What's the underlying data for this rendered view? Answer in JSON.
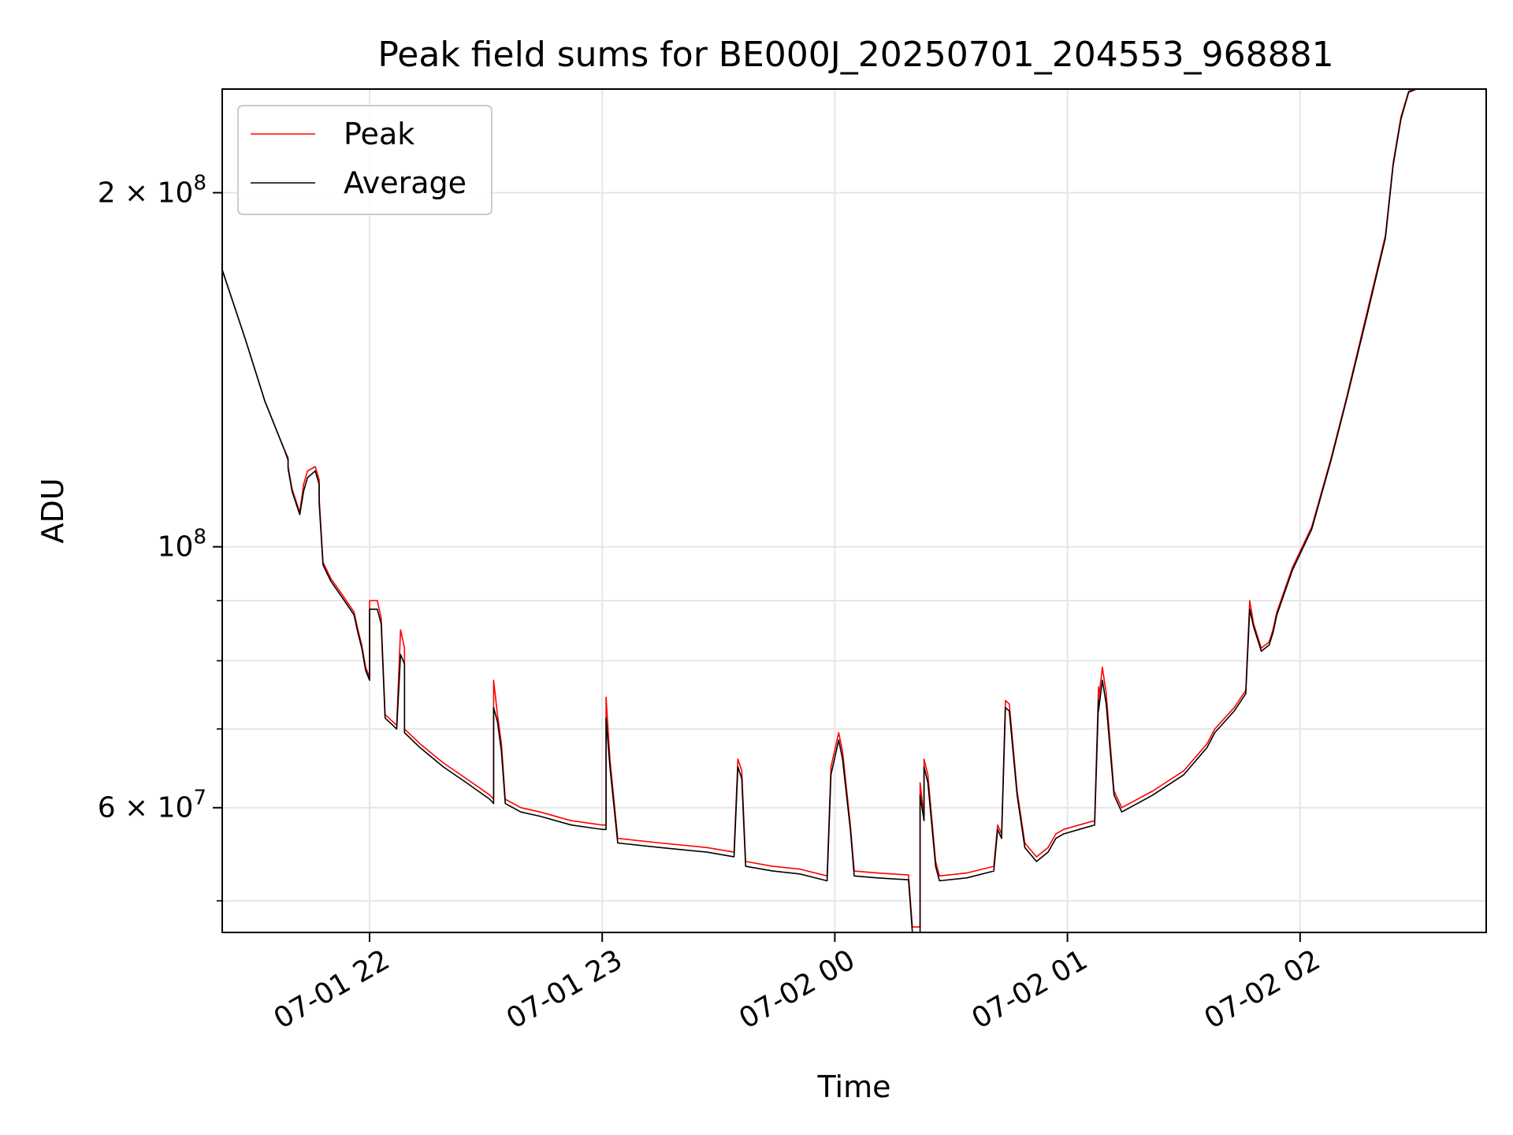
{
  "chart_data": {
    "type": "line",
    "title": "Peak field sums for BE000J_20250701_204553_968881",
    "xlabel": "Time",
    "ylabel": "ADU",
    "y_scale": "log",
    "ylim": [
      47000000,
      245000000
    ],
    "xlim": [
      "2025-07-01 21:22",
      "2025-07-02 02:48"
    ],
    "grid": true,
    "legend_position": "top-left",
    "x_ticks": [
      {
        "value": "2025-07-01 22:00",
        "label": "07-01 22"
      },
      {
        "value": "2025-07-01 23:00",
        "label": "07-01 23"
      },
      {
        "value": "2025-07-02 00:00",
        "label": "07-02 00"
      },
      {
        "value": "2025-07-02 01:00",
        "label": "07-02 01"
      },
      {
        "value": "2025-07-02 02:00",
        "label": "07-02 02"
      }
    ],
    "y_ticks": [
      {
        "value": 60000000,
        "label": "6×10^7",
        "mantissa": "6",
        "exponent": "7"
      },
      {
        "value": 100000000,
        "label": "10^8",
        "mantissa": "",
        "exponent": "8"
      },
      {
        "value": 200000000,
        "label": "2×10^8",
        "mantissa": "2",
        "exponent": "8"
      }
    ],
    "y_minor_ticks": [
      50000000,
      70000000,
      80000000,
      90000000
    ],
    "colors": {
      "Peak": "#ff0000",
      "Average": "#000000",
      "grid": "#e6e6e6"
    },
    "series": [
      {
        "name": "Peak",
        "points": [
          [
            "2025-07-01 21:22",
            172000000
          ],
          [
            "2025-07-01 21:28",
            150000000
          ],
          [
            "2025-07-01 21:33",
            133000000
          ],
          [
            "2025-07-01 21:38",
            121000000
          ],
          [
            "2025-07-01 21:39",
            119000000
          ],
          [
            "2025-07-01 21:39",
            117000000
          ],
          [
            "2025-07-01 21:40",
            112000000
          ],
          [
            "2025-07-01 21:42",
            107000000
          ],
          [
            "2025-07-01 21:43",
            113000000
          ],
          [
            "2025-07-01 21:44",
            116000000
          ],
          [
            "2025-07-01 21:46",
            117000000
          ],
          [
            "2025-07-01 21:47",
            114000000
          ],
          [
            "2025-07-01 21:47",
            110000000
          ],
          [
            "2025-07-01 21:48",
            97000000
          ],
          [
            "2025-07-01 21:50",
            94000000
          ],
          [
            "2025-07-01 21:53",
            91000000
          ],
          [
            "2025-07-01 21:56",
            88000000
          ],
          [
            "2025-07-01 21:57",
            85000000
          ],
          [
            "2025-07-01 21:58",
            82500000
          ],
          [
            "2025-07-01 21:59",
            79000000
          ],
          [
            "2025-07-01 22:00",
            77500000
          ],
          [
            "2025-07-01 22:00",
            90000000
          ],
          [
            "2025-07-01 22:02",
            90000000
          ],
          [
            "2025-07-01 22:03",
            87000000
          ],
          [
            "2025-07-01 22:04",
            72000000
          ],
          [
            "2025-07-01 22:06",
            71000000
          ],
          [
            "2025-07-01 22:07",
            70500000
          ],
          [
            "2025-07-01 22:08",
            85000000
          ],
          [
            "2025-07-01 22:09",
            82000000
          ],
          [
            "2025-07-01 22:09",
            70000000
          ],
          [
            "2025-07-01 22:13",
            68000000
          ],
          [
            "2025-07-01 22:19",
            65500000
          ],
          [
            "2025-07-01 22:25",
            63500000
          ],
          [
            "2025-07-01 22:31",
            61500000
          ],
          [
            "2025-07-01 22:32",
            61000000
          ],
          [
            "2025-07-01 22:32",
            77000000
          ],
          [
            "2025-07-01 22:33",
            72000000
          ],
          [
            "2025-07-01 22:34",
            68000000
          ],
          [
            "2025-07-01 22:35",
            61000000
          ],
          [
            "2025-07-01 22:39",
            60000000
          ],
          [
            "2025-07-01 22:44",
            59500000
          ],
          [
            "2025-07-01 22:52",
            58500000
          ],
          [
            "2025-07-01 23:00",
            58000000
          ],
          [
            "2025-07-01 23:01",
            58000000
          ],
          [
            "2025-07-01 23:01",
            74500000
          ],
          [
            "2025-07-01 23:02",
            66000000
          ],
          [
            "2025-07-01 23:04",
            56500000
          ],
          [
            "2025-07-01 23:15",
            56000000
          ],
          [
            "2025-07-01 23:27",
            55500000
          ],
          [
            "2025-07-01 23:34",
            55000000
          ],
          [
            "2025-07-01 23:35",
            66000000
          ],
          [
            "2025-07-01 23:36",
            64500000
          ],
          [
            "2025-07-01 23:37",
            54000000
          ],
          [
            "2025-07-01 23:44",
            53500000
          ],
          [
            "2025-07-01 23:51",
            53200000
          ],
          [
            "2025-07-01 23:58",
            52500000
          ],
          [
            "2025-07-01 23:59",
            65000000
          ],
          [
            "2025-07-02 00:01",
            69500000
          ],
          [
            "2025-07-02 00:02",
            67000000
          ],
          [
            "2025-07-02 00:04",
            58000000
          ],
          [
            "2025-07-02 00:05",
            53000000
          ],
          [
            "2025-07-02 00:11",
            52800000
          ],
          [
            "2025-07-02 00:19",
            52600000
          ],
          [
            "2025-07-02 00:20",
            47500000
          ],
          [
            "2025-07-02 00:22",
            47500000
          ],
          [
            "2025-07-02 00:22",
            63000000
          ],
          [
            "2025-07-02 00:23",
            59000000
          ],
          [
            "2025-07-02 00:23",
            66000000
          ],
          [
            "2025-07-02 00:24",
            64000000
          ],
          [
            "2025-07-02 00:26",
            54000000
          ],
          [
            "2025-07-02 00:27",
            52500000
          ],
          [
            "2025-07-02 00:34",
            52800000
          ],
          [
            "2025-07-02 00:41",
            53500000
          ],
          [
            "2025-07-02 00:42",
            58000000
          ],
          [
            "2025-07-02 00:43",
            57000000
          ],
          [
            "2025-07-02 00:44",
            74000000
          ],
          [
            "2025-07-02 00:45",
            73500000
          ],
          [
            "2025-07-02 00:47",
            62000000
          ],
          [
            "2025-07-02 00:49",
            56000000
          ],
          [
            "2025-07-02 00:52",
            54500000
          ],
          [
            "2025-07-02 00:55",
            55500000
          ],
          [
            "2025-07-02 00:57",
            57000000
          ],
          [
            "2025-07-02 00:59",
            57500000
          ],
          [
            "2025-07-02 01:03",
            58000000
          ],
          [
            "2025-07-02 01:07",
            58500000
          ],
          [
            "2025-07-02 01:08",
            76000000
          ],
          [
            "2025-07-02 01:08",
            74000000
          ],
          [
            "2025-07-02 01:09",
            79000000
          ],
          [
            "2025-07-02 01:10",
            75000000
          ],
          [
            "2025-07-02 01:12",
            62000000
          ],
          [
            "2025-07-02 01:14",
            60000000
          ],
          [
            "2025-07-02 01:22",
            62000000
          ],
          [
            "2025-07-02 01:30",
            64500000
          ],
          [
            "2025-07-02 01:36",
            68000000
          ],
          [
            "2025-07-02 01:38",
            70000000
          ],
          [
            "2025-07-02 01:43",
            73000000
          ],
          [
            "2025-07-02 01:46",
            75500000
          ],
          [
            "2025-07-02 01:47",
            90000000
          ],
          [
            "2025-07-02 01:48",
            86000000
          ],
          [
            "2025-07-02 01:49",
            84000000
          ],
          [
            "2025-07-02 01:50",
            82000000
          ],
          [
            "2025-07-02 01:52",
            83000000
          ],
          [
            "2025-07-02 01:53",
            85000000
          ],
          [
            "2025-07-02 01:54",
            88000000
          ],
          [
            "2025-07-02 01:58",
            96000000
          ],
          [
            "2025-07-02 02:03",
            104000000
          ],
          [
            "2025-07-02 02:08",
            119000000
          ],
          [
            "2025-07-02 02:12",
            134000000
          ],
          [
            "2025-07-02 02:17",
            157000000
          ],
          [
            "2025-07-02 02:22",
            184000000
          ],
          [
            "2025-07-02 02:24",
            212000000
          ],
          [
            "2025-07-02 02:26",
            232000000
          ],
          [
            "2025-07-02 02:28",
            244000000
          ],
          [
            "2025-07-02 02:30",
            245000000
          ]
        ]
      },
      {
        "name": "Average",
        "points": [
          [
            "2025-07-01 21:22",
            172000000
          ],
          [
            "2025-07-01 21:28",
            150000000
          ],
          [
            "2025-07-01 21:33",
            133000000
          ],
          [
            "2025-07-01 21:38",
            121000000
          ],
          [
            "2025-07-01 21:39",
            118500000
          ],
          [
            "2025-07-01 21:39",
            116500000
          ],
          [
            "2025-07-01 21:40",
            111500000
          ],
          [
            "2025-07-01 21:42",
            106500000
          ],
          [
            "2025-07-01 21:43",
            111500000
          ],
          [
            "2025-07-01 21:44",
            114500000
          ],
          [
            "2025-07-01 21:46",
            116000000
          ],
          [
            "2025-07-01 21:47",
            113000000
          ],
          [
            "2025-07-01 21:47",
            109000000
          ],
          [
            "2025-07-01 21:48",
            96500000
          ],
          [
            "2025-07-01 21:50",
            93500000
          ],
          [
            "2025-07-01 21:53",
            90500000
          ],
          [
            "2025-07-01 21:56",
            87500000
          ],
          [
            "2025-07-01 21:57",
            84500000
          ],
          [
            "2025-07-01 21:58",
            82000000
          ],
          [
            "2025-07-01 21:59",
            78500000
          ],
          [
            "2025-07-01 22:00",
            77000000
          ],
          [
            "2025-07-01 22:00",
            88500000
          ],
          [
            "2025-07-01 22:02",
            88500000
          ],
          [
            "2025-07-01 22:03",
            86000000
          ],
          [
            "2025-07-01 22:04",
            71500000
          ],
          [
            "2025-07-01 22:06",
            70500000
          ],
          [
            "2025-07-01 22:07",
            70000000
          ],
          [
            "2025-07-01 22:08",
            81000000
          ],
          [
            "2025-07-01 22:09",
            79500000
          ],
          [
            "2025-07-01 22:09",
            69500000
          ],
          [
            "2025-07-01 22:13",
            67500000
          ],
          [
            "2025-07-01 22:19",
            65000000
          ],
          [
            "2025-07-01 22:25",
            63000000
          ],
          [
            "2025-07-01 22:31",
            61000000
          ],
          [
            "2025-07-01 22:32",
            60500000
          ],
          [
            "2025-07-01 22:32",
            73000000
          ],
          [
            "2025-07-01 22:33",
            71000000
          ],
          [
            "2025-07-01 22:34",
            67000000
          ],
          [
            "2025-07-01 22:35",
            60500000
          ],
          [
            "2025-07-01 22:39",
            59500000
          ],
          [
            "2025-07-01 22:44",
            59000000
          ],
          [
            "2025-07-01 22:52",
            58000000
          ],
          [
            "2025-07-01 23:00",
            57500000
          ],
          [
            "2025-07-01 23:01",
            57500000
          ],
          [
            "2025-07-01 23:01",
            71500000
          ],
          [
            "2025-07-01 23:02",
            65000000
          ],
          [
            "2025-07-01 23:04",
            56000000
          ],
          [
            "2025-07-01 23:15",
            55500000
          ],
          [
            "2025-07-01 23:27",
            55000000
          ],
          [
            "2025-07-01 23:34",
            54500000
          ],
          [
            "2025-07-01 23:35",
            65000000
          ],
          [
            "2025-07-01 23:36",
            63500000
          ],
          [
            "2025-07-01 23:37",
            53500000
          ],
          [
            "2025-07-01 23:44",
            53000000
          ],
          [
            "2025-07-01 23:51",
            52700000
          ],
          [
            "2025-07-01 23:58",
            52000000
          ],
          [
            "2025-07-01 23:59",
            64000000
          ],
          [
            "2025-07-02 00:01",
            68500000
          ],
          [
            "2025-07-02 00:02",
            66000000
          ],
          [
            "2025-07-02 00:04",
            57500000
          ],
          [
            "2025-07-02 00:05",
            52500000
          ],
          [
            "2025-07-02 00:11",
            52300000
          ],
          [
            "2025-07-02 00:19",
            52100000
          ],
          [
            "2025-07-02 00:20",
            47000000
          ],
          [
            "2025-07-02 00:22",
            47000000
          ],
          [
            "2025-07-02 00:22",
            61500000
          ],
          [
            "2025-07-02 00:23",
            58500000
          ],
          [
            "2025-07-02 00:23",
            65000000
          ],
          [
            "2025-07-02 00:24",
            63000000
          ],
          [
            "2025-07-02 00:26",
            53500000
          ],
          [
            "2025-07-02 00:27",
            52000000
          ],
          [
            "2025-07-02 00:34",
            52300000
          ],
          [
            "2025-07-02 00:41",
            53000000
          ],
          [
            "2025-07-02 00:42",
            57500000
          ],
          [
            "2025-07-02 00:43",
            56500000
          ],
          [
            "2025-07-02 00:44",
            73000000
          ],
          [
            "2025-07-02 00:45",
            72500000
          ],
          [
            "2025-07-02 00:47",
            61500000
          ],
          [
            "2025-07-02 00:49",
            55500000
          ],
          [
            "2025-07-02 00:52",
            54000000
          ],
          [
            "2025-07-02 00:55",
            55000000
          ],
          [
            "2025-07-02 00:57",
            56500000
          ],
          [
            "2025-07-02 00:59",
            57000000
          ],
          [
            "2025-07-02 01:03",
            57500000
          ],
          [
            "2025-07-02 01:07",
            58000000
          ],
          [
            "2025-07-02 01:08",
            74000000
          ],
          [
            "2025-07-02 01:08",
            72500000
          ],
          [
            "2025-07-02 01:09",
            77000000
          ],
          [
            "2025-07-02 01:10",
            73500000
          ],
          [
            "2025-07-02 01:12",
            61500000
          ],
          [
            "2025-07-02 01:14",
            59500000
          ],
          [
            "2025-07-02 01:22",
            61500000
          ],
          [
            "2025-07-02 01:30",
            64000000
          ],
          [
            "2025-07-02 01:36",
            67500000
          ],
          [
            "2025-07-02 01:38",
            69500000
          ],
          [
            "2025-07-02 01:43",
            72500000
          ],
          [
            "2025-07-02 01:46",
            75000000
          ],
          [
            "2025-07-02 01:47",
            88500000
          ],
          [
            "2025-07-02 01:48",
            85500000
          ],
          [
            "2025-07-02 01:49",
            83500000
          ],
          [
            "2025-07-02 01:50",
            81500000
          ],
          [
            "2025-07-02 01:52",
            82500000
          ],
          [
            "2025-07-02 01:53",
            84500000
          ],
          [
            "2025-07-02 01:54",
            87500000
          ],
          [
            "2025-07-02 01:58",
            95500000
          ],
          [
            "2025-07-02 02:03",
            103500000
          ],
          [
            "2025-07-02 02:08",
            118500000
          ],
          [
            "2025-07-02 02:12",
            133500000
          ],
          [
            "2025-07-02 02:17",
            156000000
          ],
          [
            "2025-07-02 02:22",
            183000000
          ],
          [
            "2025-07-02 02:24",
            211000000
          ],
          [
            "2025-07-02 02:26",
            231000000
          ],
          [
            "2025-07-02 02:28",
            243500000
          ],
          [
            "2025-07-02 02:30",
            245000000
          ]
        ]
      }
    ]
  }
}
